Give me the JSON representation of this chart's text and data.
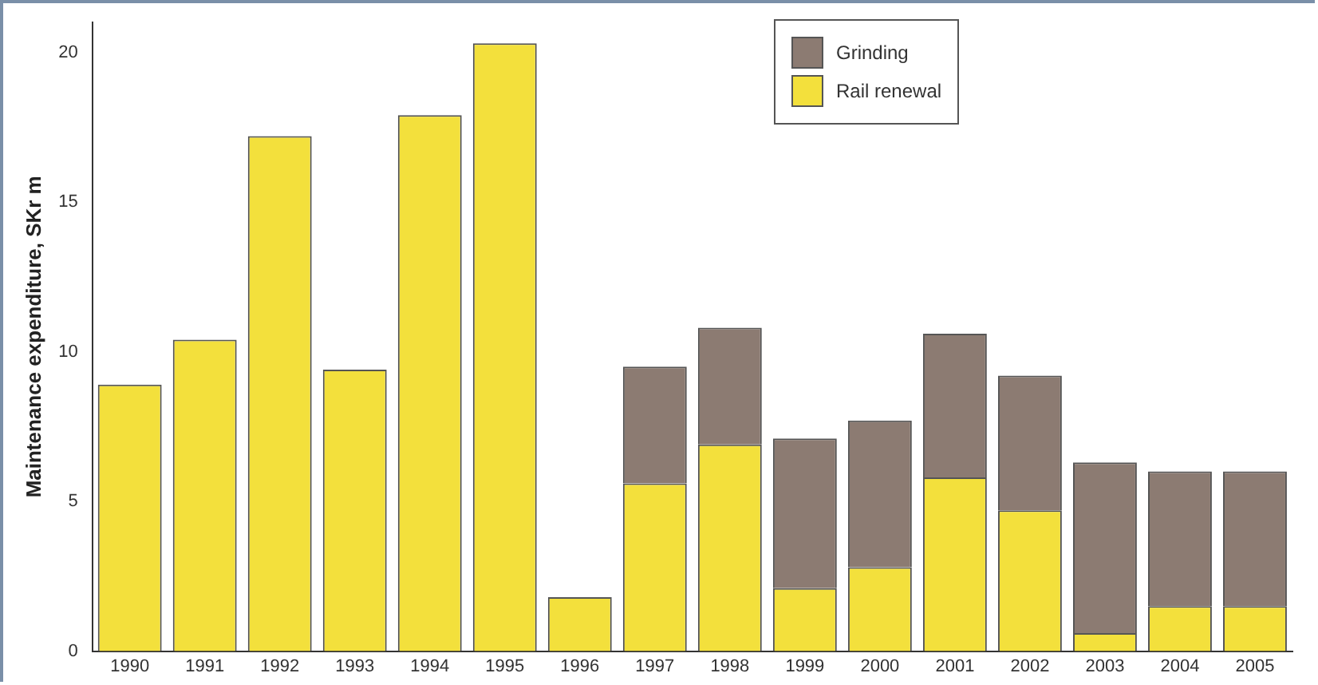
{
  "chart_data": {
    "type": "bar",
    "ylabel": "Maintenance expenditure, SKr m",
    "stacked": true,
    "legend": "top",
    "grid": false,
    "categories": [
      "1990",
      "1991",
      "1992",
      "1993",
      "1994",
      "1995",
      "1996",
      "1997",
      "1998",
      "1999",
      "2000",
      "2001",
      "2002",
      "2003",
      "2004",
      "2005"
    ],
    "series": [
      {
        "name": "Rail renewal",
        "color": "#f3e03c",
        "values": [
          8.9,
          10.4,
          17.2,
          9.4,
          17.9,
          20.3,
          1.8,
          5.6,
          6.9,
          2.1,
          2.8,
          5.8,
          4.7,
          0.6,
          1.5,
          1.5
        ]
      },
      {
        "name": "Grinding",
        "color": "#8c7b72",
        "values": [
          null,
          null,
          null,
          null,
          null,
          null,
          null,
          3.9,
          3.9,
          5.0,
          4.9,
          4.8,
          4.5,
          5.7,
          4.5,
          4.5
        ]
      }
    ],
    "ylim": [
      0,
      21
    ],
    "yticks": [
      0,
      5,
      10,
      15,
      20
    ]
  }
}
